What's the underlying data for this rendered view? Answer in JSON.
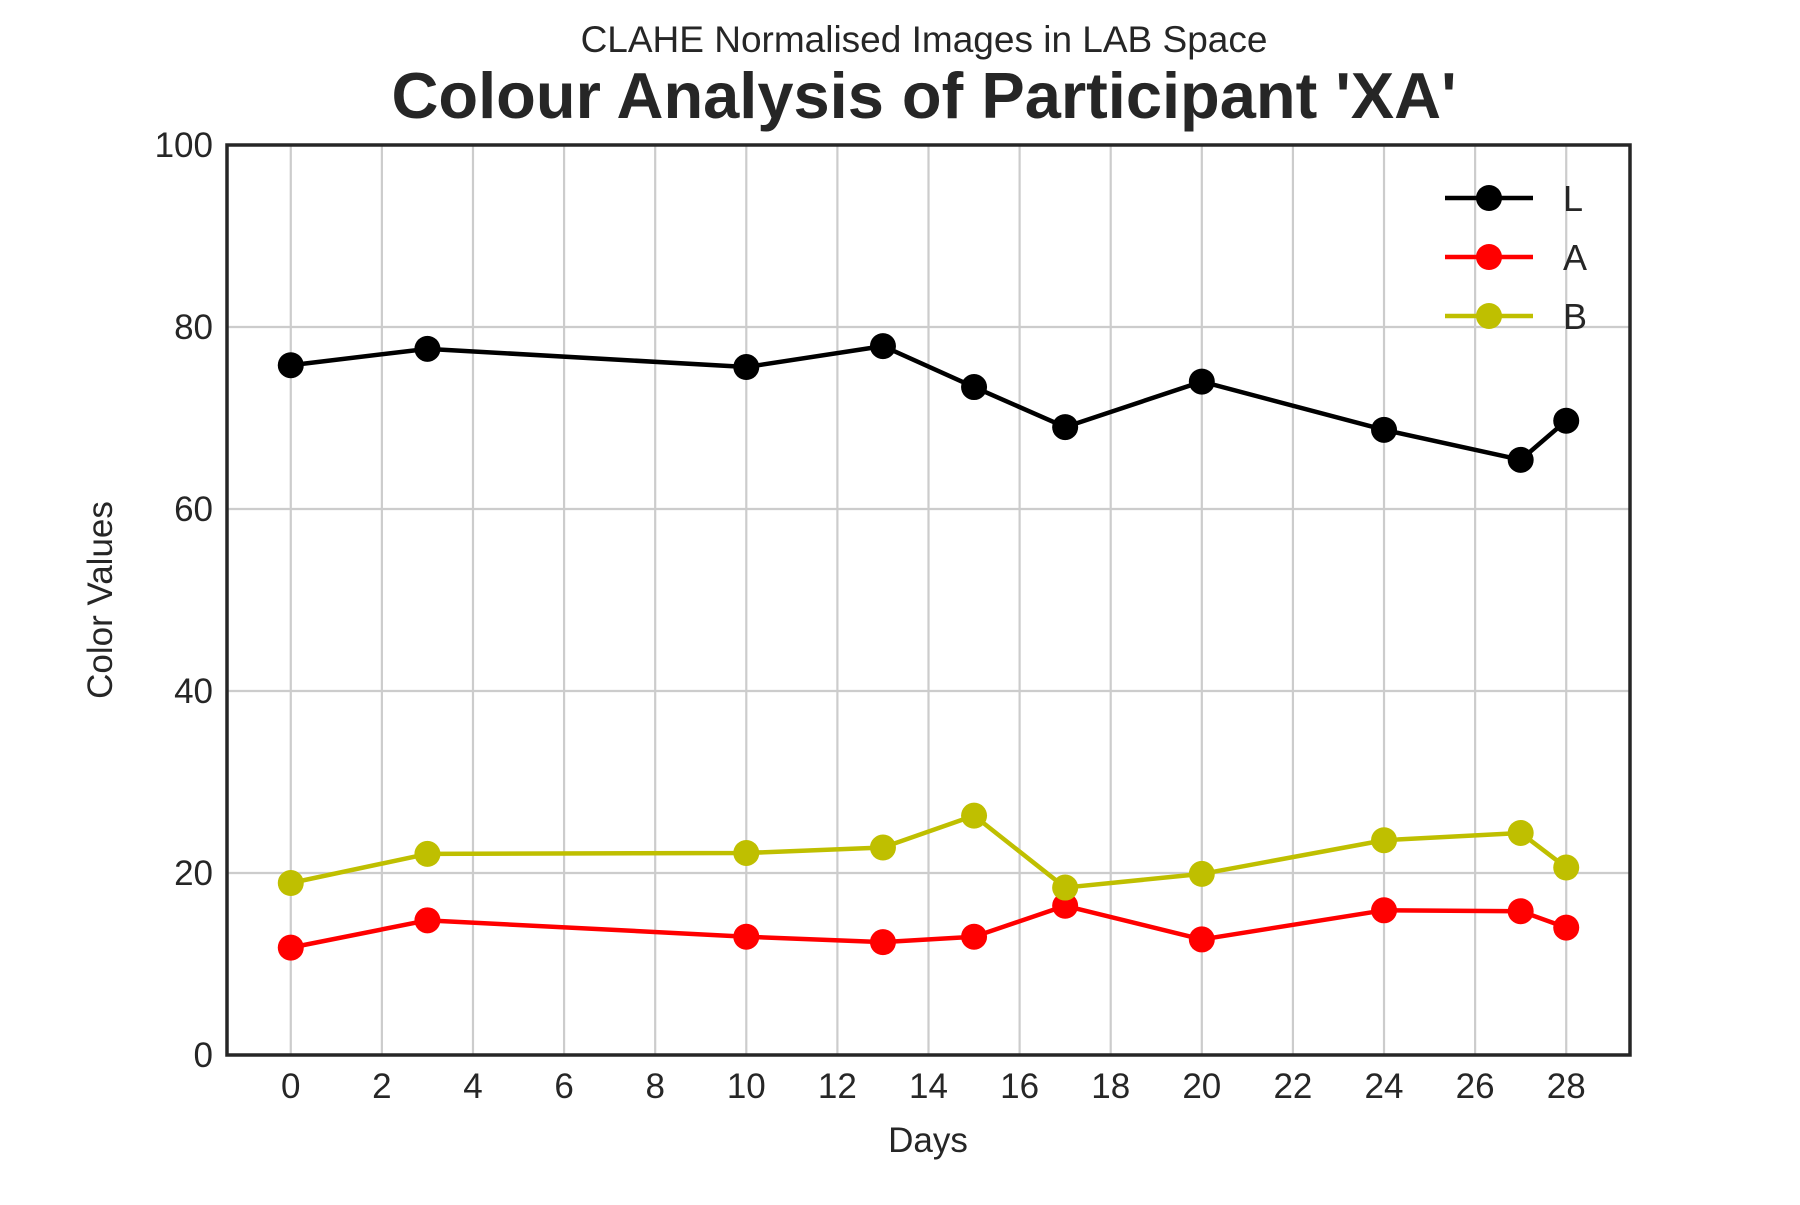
{
  "chart_data": {
    "type": "line",
    "subtitle": "CLAHE Normalised Images in LAB Space",
    "title": "Colour Analysis of Participant 'XA'",
    "xlabel": "Days",
    "ylabel": "Color Values",
    "xlim": [
      -1.4,
      29.4
    ],
    "ylim": [
      0,
      100
    ],
    "x_ticks": [
      "0",
      "2",
      "4",
      "6",
      "8",
      "10",
      "12",
      "14",
      "16",
      "18",
      "20",
      "22",
      "24",
      "26",
      "28"
    ],
    "y_ticks": [
      "0",
      "20",
      "40",
      "60",
      "80",
      "100"
    ],
    "grid": true,
    "legend_position": "top-right",
    "x": [
      0,
      3,
      10,
      13,
      15,
      17,
      20,
      24,
      27,
      28
    ],
    "series": [
      {
        "name": "L",
        "color": "#000000",
        "values": [
          75.8,
          77.6,
          75.6,
          77.9,
          73.4,
          69.0,
          74.0,
          68.7,
          65.4,
          69.7
        ]
      },
      {
        "name": "A",
        "color": "#ff0000",
        "values": [
          11.8,
          14.8,
          13.0,
          12.4,
          13.0,
          16.4,
          12.7,
          15.9,
          15.8,
          14.0
        ]
      },
      {
        "name": "B",
        "color": "#bfbf00",
        "values": [
          18.9,
          22.1,
          22.2,
          22.8,
          26.3,
          18.4,
          19.9,
          23.6,
          24.4,
          20.6
        ]
      }
    ]
  }
}
